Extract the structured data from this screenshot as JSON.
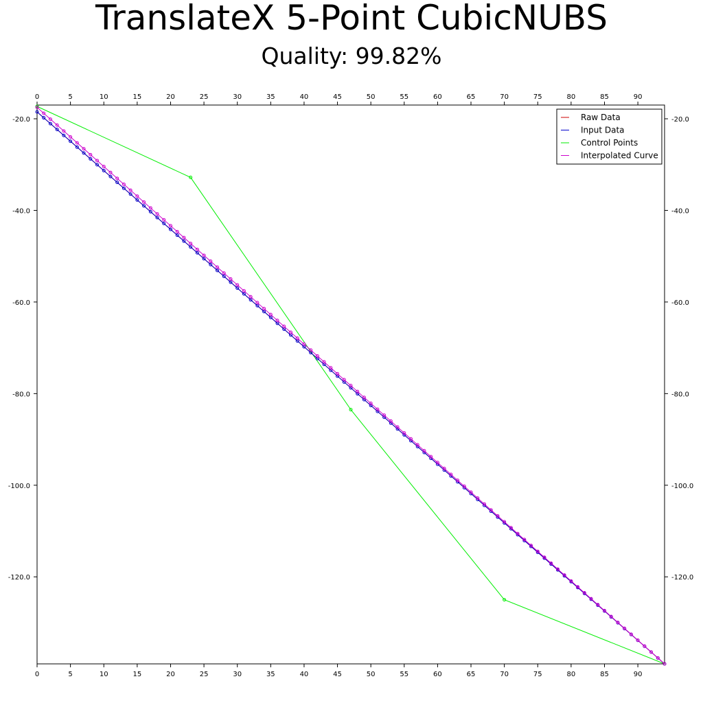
{
  "chart_data": {
    "type": "line",
    "title": "TranslateX 5-Point CubicNUBS",
    "subtitle": "Quality: 99.82%",
    "xlim": [
      0,
      94
    ],
    "ylim": [
      -139,
      -17
    ],
    "x_ticks": [
      0,
      5,
      10,
      15,
      20,
      25,
      30,
      35,
      40,
      45,
      50,
      55,
      60,
      65,
      70,
      75,
      80,
      85,
      90
    ],
    "x_tick_labels": [
      "0",
      "5",
      "10",
      "15",
      "20",
      "25",
      "30",
      "35",
      "40",
      "45",
      "50",
      "55",
      "60",
      "65",
      "70",
      "75",
      "80",
      "85",
      "90"
    ],
    "y_ticks": [
      -20,
      -40,
      -60,
      -80,
      -100,
      -120
    ],
    "y_tick_labels": [
      "-20.0",
      "-40.0",
      "-60.0",
      "-80.0",
      "-100.0",
      "-120.0"
    ],
    "grid": false,
    "legend_position": "top-right",
    "series": [
      {
        "name": "Raw Data",
        "color": "#cc0000",
        "marker": "none",
        "x": [
          0,
          94
        ],
        "y": [
          -18.5,
          -139
        ]
      },
      {
        "name": "Input Data",
        "color": "#0000cc",
        "marker": "circle",
        "x": [
          0,
          94
        ],
        "y": [
          -18.5,
          -139
        ]
      },
      {
        "name": "Control Points",
        "color": "#00ee00",
        "marker": "circle",
        "x": [
          0,
          23,
          47,
          70,
          94
        ],
        "y": [
          -17.3,
          -32.8,
          -83.5,
          -125,
          -139
        ]
      },
      {
        "name": "Interpolated Curve",
        "color": "#cc00cc",
        "marker": "circle",
        "x": [
          0,
          94
        ],
        "y": [
          -17.5,
          -139
        ]
      }
    ]
  }
}
